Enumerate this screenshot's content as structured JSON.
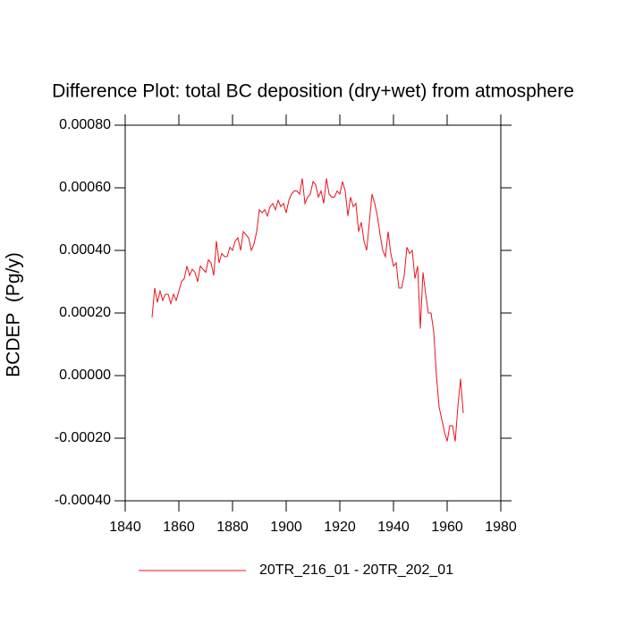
{
  "chart_data": {
    "type": "line",
    "title": "Difference Plot: total BC deposition (dry+wet) from atmosphere",
    "y_label": "BCDEP  (Pg/y)",
    "x": [
      1850,
      1851,
      1852,
      1853,
      1854,
      1855,
      1856,
      1857,
      1858,
      1859,
      1860,
      1861,
      1862,
      1863,
      1864,
      1865,
      1866,
      1867,
      1868,
      1869,
      1870,
      1871,
      1872,
      1873,
      1874,
      1875,
      1876,
      1877,
      1878,
      1879,
      1880,
      1881,
      1882,
      1883,
      1884,
      1885,
      1886,
      1887,
      1888,
      1889,
      1890,
      1891,
      1892,
      1893,
      1894,
      1895,
      1896,
      1897,
      1898,
      1899,
      1900,
      1901,
      1902,
      1903,
      1904,
      1905,
      1906,
      1907,
      1908,
      1909,
      1910,
      1911,
      1912,
      1913,
      1914,
      1915,
      1916,
      1917,
      1918,
      1919,
      1920,
      1921,
      1922,
      1923,
      1924,
      1925,
      1926,
      1927,
      1928,
      1929,
      1930,
      1931,
      1932,
      1933,
      1934,
      1935,
      1936,
      1937,
      1938,
      1939,
      1940,
      1941,
      1942,
      1943,
      1944,
      1945,
      1946,
      1947,
      1948,
      1949,
      1950,
      1951,
      1952,
      1953,
      1954,
      1955,
      1956,
      1957,
      1958,
      1959,
      1960,
      1961,
      1962,
      1963,
      1964,
      1965,
      1966
    ],
    "series": [
      {
        "name": "20TR_216_01 - 20TR_202_01",
        "color": "#e8141e",
        "values": [
          0.000186,
          0.00028,
          0.000234,
          0.00027,
          0.00024,
          0.00026,
          0.00026,
          0.00023,
          0.00026,
          0.00024,
          0.00027,
          0.0003,
          0.00031,
          0.00035,
          0.00032,
          0.00034,
          0.00033,
          0.0003,
          0.00035,
          0.00034,
          0.00033,
          0.00037,
          0.00036,
          0.00032,
          0.00043,
          0.00036,
          0.00039,
          0.00038,
          0.00038,
          0.00041,
          0.0004,
          0.00043,
          0.00044,
          0.0004,
          0.00046,
          0.00045,
          0.00044,
          0.0004,
          0.00042,
          0.00046,
          0.00053,
          0.00052,
          0.00053,
          0.00051,
          0.00054,
          0.00055,
          0.00053,
          0.00056,
          0.00054,
          0.00055,
          0.00052,
          0.00056,
          0.00058,
          0.00059,
          0.00059,
          0.00058,
          0.00063,
          0.00055,
          0.00057,
          0.00058,
          0.00062,
          0.00061,
          0.00057,
          0.00059,
          0.00055,
          0.00063,
          0.00058,
          0.00057,
          0.00057,
          0.00059,
          0.00058,
          0.00062,
          0.00059,
          0.00051,
          0.00057,
          0.00054,
          0.00055,
          0.00046,
          0.00049,
          0.00043,
          0.0004,
          0.00049,
          0.00058,
          0.00055,
          0.00051,
          0.00045,
          0.0004,
          0.00038,
          0.00046,
          0.00039,
          0.00035,
          0.00036,
          0.00028,
          0.00028,
          0.00032,
          0.00041,
          0.00039,
          0.0004,
          0.00031,
          0.00035,
          0.00015,
          0.00033,
          0.00026,
          0.0002,
          0.0002,
          0.00014,
          0.0,
          -0.0001,
          -0.00014,
          -0.00018,
          -0.00021,
          -0.00016,
          -0.00016,
          -0.00021,
          -0.0001,
          -1e-05,
          -0.00012
        ]
      }
    ],
    "xlim": [
      1840,
      1980
    ],
    "xticks": [
      1840,
      1860,
      1880,
      1900,
      1920,
      1940,
      1960,
      1980
    ],
    "ylim": [
      -0.0004,
      0.0008
    ],
    "yticks": [
      {
        "value": -0.0004,
        "label": "-0.00040"
      },
      {
        "value": -0.0002,
        "label": "-0.00020"
      },
      {
        "value": 0,
        "label": "0.00000"
      },
      {
        "value": 0.0002,
        "label": "0.00020"
      },
      {
        "value": 0.0004,
        "label": "0.00040"
      },
      {
        "value": 0.0006,
        "label": "0.00060"
      },
      {
        "value": 0.0008,
        "label": "0.00080"
      }
    ],
    "legend": "bottom"
  }
}
